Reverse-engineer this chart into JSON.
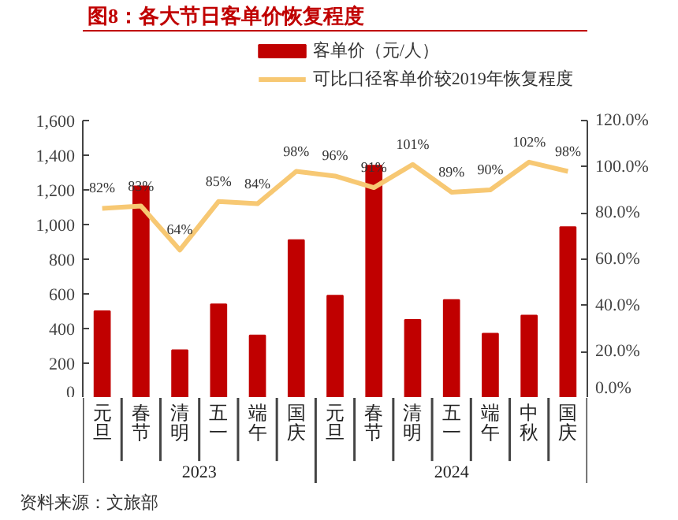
{
  "chart_data": {
    "type": "bar",
    "title": "图8：各大节日客单价恢复程度",
    "categories": [
      "元旦",
      "春节",
      "清明",
      "五一",
      "端午",
      "国庆",
      "元旦",
      "春节",
      "清明",
      "五一",
      "端午",
      "中秋",
      "国庆"
    ],
    "series": [
      {
        "name": "客单价（元/人）",
        "color": "#c00000",
        "values": [
          500,
          1220,
          275,
          540,
          360,
          910,
          590,
          1340,
          450,
          565,
          370,
          475,
          985
        ]
      },
      {
        "name": "可比口径客单价较2019年恢复程度",
        "type": "line",
        "axis": "y2",
        "color": "#f7c873",
        "values": [
          82,
          83,
          64,
          85,
          84,
          98,
          96,
          91,
          101,
          89,
          90,
          102,
          98
        ],
        "value_labels": [
          "82%",
          "83%",
          "64%",
          "85%",
          "84%",
          "98%",
          "96%",
          "91%",
          "101%",
          "89%",
          "90%",
          "102%",
          "98%"
        ]
      }
    ],
    "ylim": [
      0,
      1600
    ],
    "yticks": [
      0,
      200,
      400,
      600,
      800,
      {
        "value": 1000,
        "label": "1,000"
      },
      {
        "value": 1200,
        "label": "1,200"
      },
      {
        "value": 1400,
        "label": "1,400"
      },
      {
        "value": 1600,
        "label": "1,600"
      }
    ],
    "y2lim": [
      0,
      120
    ],
    "y2ticks": [
      {
        "value": 0,
        "label": "0.0%"
      },
      {
        "value": 20,
        "label": "20.0%"
      },
      {
        "value": 40,
        "label": "40.0%"
      },
      {
        "value": 60,
        "label": "60.0%"
      },
      {
        "value": 80,
        "label": "80.0%"
      },
      {
        "value": 100,
        "label": "100.0%"
      },
      {
        "value": 120,
        "label": "120.0%"
      }
    ],
    "legend": "top",
    "grid": false,
    "annotations": [
      "2023",
      "2024",
      "资料来源：文旅部"
    ]
  }
}
